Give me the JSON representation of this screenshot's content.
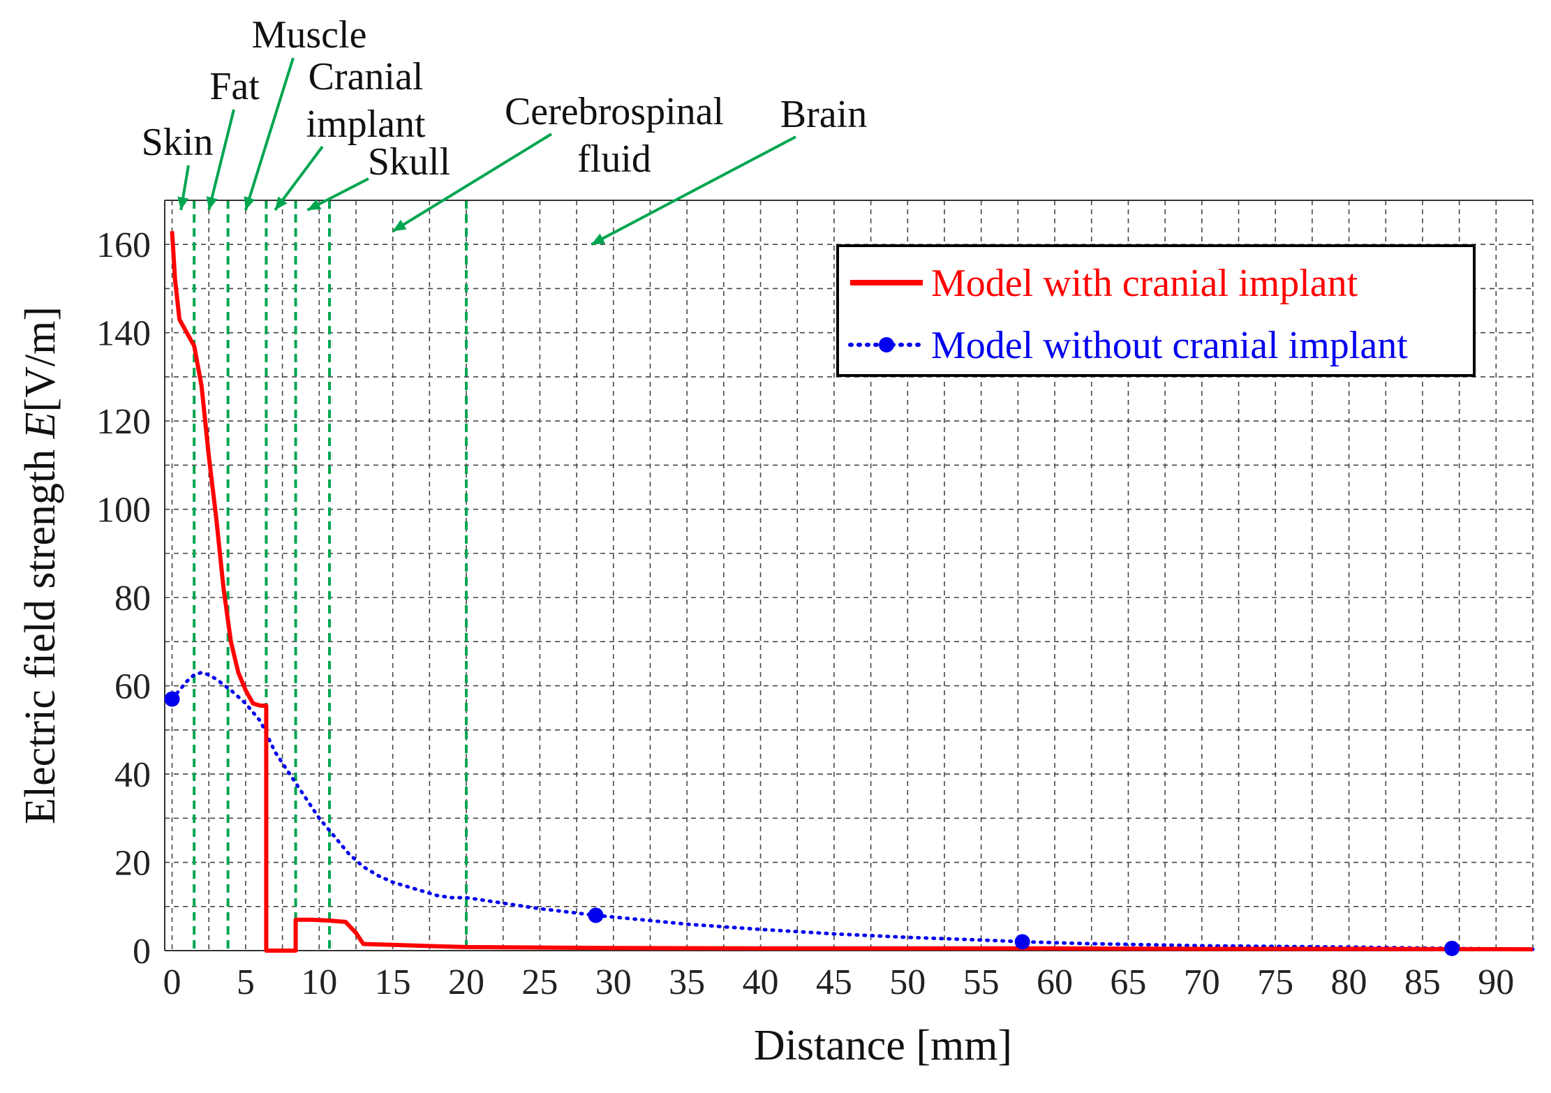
{
  "chart_data": {
    "type": "line",
    "title": "",
    "xlabel": "Distance [mm]",
    "ylabel_prefix": "Electric field strength ",
    "ylabel_var": "E",
    "ylabel_suffix": "[V/m]",
    "xlim": [
      -0.5,
      92.5
    ],
    "ylim": [
      0,
      170
    ],
    "x_ticks": [
      0,
      5,
      10,
      15,
      20,
      25,
      30,
      35,
      40,
      45,
      50,
      55,
      60,
      65,
      70,
      75,
      80,
      85,
      90
    ],
    "y_ticks": [
      0,
      20,
      40,
      60,
      80,
      100,
      120,
      140,
      160
    ],
    "grid": true,
    "legend_position": "top-right",
    "colors": {
      "with": "#ff0000",
      "without": "#0000ee",
      "boundary": "#00a550",
      "grid": "#444444"
    },
    "boundaries_mm": [
      1.5,
      3.8,
      6.4,
      8.4,
      10.7,
      20.0
    ],
    "tissue_labels": [
      {
        "lines": [
          "Skin"
        ],
        "target_mm": 0.6
      },
      {
        "lines": [
          "Fat"
        ],
        "target_mm": 2.5
      },
      {
        "lines": [
          "Muscle"
        ],
        "target_mm": 5.0
      },
      {
        "lines": [
          "Cranial",
          "implant"
        ],
        "target_mm": 7.0
      },
      {
        "lines": [
          "Skull"
        ],
        "target_mm": 9.2
      },
      {
        "lines": [
          "Cerebrospinal",
          "fluid"
        ],
        "target_mm": 15,
        "target_y": 163
      },
      {
        "lines": [
          "Brain"
        ],
        "target_mm": 28.5,
        "target_y": 160
      }
    ],
    "series": [
      {
        "name": "Model with cranial implant",
        "style": "solid",
        "x": [
          0,
          0.2,
          0.5,
          1,
          1.5,
          2,
          2.5,
          3,
          3.5,
          4,
          4.5,
          5,
          5.5,
          6,
          6.4,
          6.4,
          8.4,
          8.4,
          9.5,
          10.7,
          11.8,
          12.5,
          13.0,
          15,
          18,
          20,
          30,
          40,
          50,
          60,
          70,
          80,
          92.5
        ],
        "values": [
          163,
          152,
          143,
          140,
          137,
          128,
          112,
          98,
          82,
          70,
          63,
          59,
          56,
          55.5,
          55.5,
          0,
          0,
          7,
          7,
          6.8,
          6.5,
          4,
          1.5,
          1.3,
          1.0,
          0.8,
          0.6,
          0.5,
          0.5,
          0.5,
          0.4,
          0.4,
          0.3
        ]
      },
      {
        "name": "Model without cranial implant",
        "style": "dotted",
        "x": [
          0,
          0.5,
          1,
          1.5,
          2,
          2.5,
          3,
          4,
          5,
          6,
          7,
          8,
          9,
          10,
          11,
          12,
          13,
          14,
          15,
          16,
          17,
          18,
          19,
          20,
          22,
          25,
          28.8,
          35,
          40,
          45,
          50,
          55,
          58,
          62,
          70,
          80,
          87,
          92.5
        ],
        "values": [
          57,
          59,
          61,
          62.5,
          63,
          62.5,
          61.5,
          59,
          56,
          52,
          45,
          40,
          35,
          30,
          26,
          22,
          19,
          17,
          15.5,
          14.5,
          13.5,
          12.5,
          12,
          12,
          11,
          9.5,
          8,
          6,
          4.8,
          3.8,
          3,
          2.4,
          2,
          1.6,
          1.1,
          0.8,
          0.5,
          0.3
        ],
        "markers_x": [
          0,
          28.8,
          57.8,
          87.0
        ],
        "markers_y": [
          57,
          8,
          2,
          0.5
        ]
      }
    ]
  }
}
